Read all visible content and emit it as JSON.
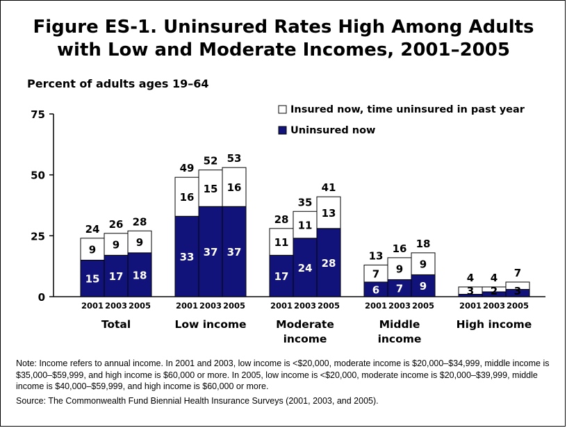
{
  "title_line1": "Figure ES-1. Uninsured Rates High Among Adults",
  "title_line2": "with Low and Moderate Incomes, 2001–2005",
  "note": "Note: Income refers to annual income. In 2001 and 2003, low income is <$20,000, moderate income is $20,000–$34,999, middle income is $35,000–$59,999, and high income is $60,000 or more. In 2005, low income is <$20,000, moderate income is $20,000–$39,999, middle income is $40,000–$59,999, and high income is $60,000 or more.",
  "source": "Source: The Commonwealth Fund Biennial Health Insurance Surveys (2001, 2003, and 2005).",
  "colors": {
    "uninsured": "#12137a",
    "insured": "#ffffff",
    "outline": "#000000"
  },
  "chart_data": {
    "type": "bar",
    "stacked": true,
    "title": "Figure ES-1. Uninsured Rates High Among Adults with Low and Moderate Incomes, 2001–2005",
    "ylabel": "Percent of adults ages 19–64",
    "ylim": [
      0,
      75
    ],
    "yticks": [
      0,
      25,
      50,
      75
    ],
    "legend_position": "top-right",
    "groups": [
      {
        "label": [
          "Total"
        ],
        "years": [
          "2001",
          "2003",
          "2005"
        ],
        "uninsured": [
          15,
          17,
          18
        ],
        "insured_past_year": [
          9,
          9,
          9
        ],
        "totals": [
          24,
          26,
          28
        ]
      },
      {
        "label": [
          "Low income"
        ],
        "years": [
          "2001",
          "2003",
          "2005"
        ],
        "uninsured": [
          33,
          37,
          37
        ],
        "insured_past_year": [
          16,
          15,
          16
        ],
        "totals": [
          49,
          52,
          53
        ]
      },
      {
        "label": [
          "Moderate",
          "income"
        ],
        "years": [
          "2001",
          "2003",
          "2005"
        ],
        "uninsured": [
          17,
          24,
          28
        ],
        "insured_past_year": [
          11,
          11,
          13
        ],
        "totals": [
          28,
          35,
          41
        ]
      },
      {
        "label": [
          "Middle",
          "income"
        ],
        "years": [
          "2001",
          "2003",
          "2005"
        ],
        "uninsured": [
          6,
          7,
          9
        ],
        "insured_past_year": [
          7,
          9,
          9
        ],
        "totals": [
          13,
          16,
          18
        ]
      },
      {
        "label": [
          "High income"
        ],
        "years": [
          "2001",
          "2003",
          "2005"
        ],
        "uninsured": [
          1,
          2,
          3
        ],
        "insured_past_year": [
          3,
          2,
          3
        ],
        "totals": [
          4,
          4,
          7
        ],
        "uninsured_labels": [
          "",
          "",
          ""
        ],
        "insured_labels": [
          "3",
          "2",
          "3"
        ]
      }
    ],
    "series": [
      {
        "name": "Insured now, time uninsured in past year",
        "key": "insured_past_year"
      },
      {
        "name": "Uninsured now",
        "key": "uninsured"
      }
    ]
  }
}
